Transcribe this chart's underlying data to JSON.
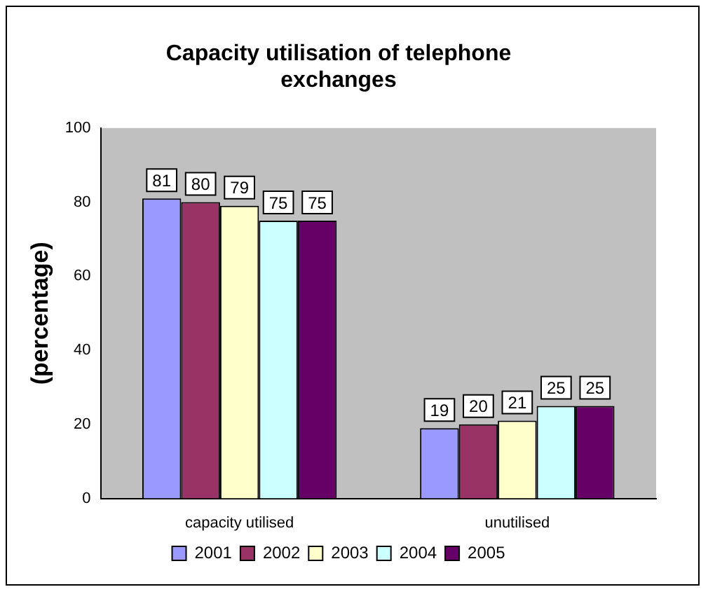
{
  "chart_data": {
    "type": "bar",
    "title": "Capacity utilisation of telephone exchanges",
    "ylabel": "(percentage)",
    "categories": [
      "capacity utilised",
      "unutilised"
    ],
    "series": [
      {
        "name": "2001",
        "color": "#9999ff",
        "values": [
          81,
          19
        ]
      },
      {
        "name": "2002",
        "color": "#993366",
        "values": [
          80,
          20
        ]
      },
      {
        "name": "2003",
        "color": "#ffffcc",
        "values": [
          79,
          21
        ]
      },
      {
        "name": "2004",
        "color": "#ccffff",
        "values": [
          75,
          25
        ]
      },
      {
        "name": "2005",
        "color": "#660066",
        "values": [
          75,
          25
        ]
      }
    ],
    "ylim": [
      0,
      100
    ],
    "yticks": [
      0,
      20,
      40,
      60,
      80,
      100
    ],
    "grid": false,
    "legend": "bottom",
    "data_labels": true
  }
}
